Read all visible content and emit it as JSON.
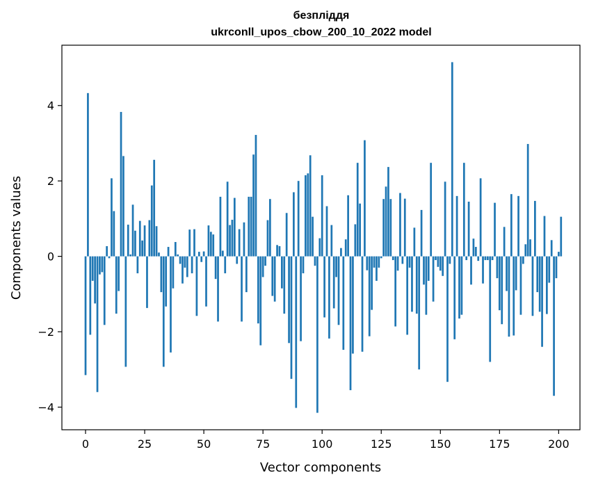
{
  "chart_data": {
    "type": "bar",
    "title_line1": "безпліддя",
    "title_line2": "ukrconll_upos_cbow_200_10_2022 model",
    "xlabel": "Vector components",
    "ylabel": "Components values",
    "xlim": [
      -10,
      209
    ],
    "ylim": [
      -4.6,
      5.6
    ],
    "x_ticks": [
      0,
      25,
      50,
      75,
      100,
      125,
      150,
      175,
      200
    ],
    "x_tick_labels": [
      "0",
      "25",
      "50",
      "75",
      "100",
      "125",
      "150",
      "175",
      "200"
    ],
    "y_ticks": [
      -4,
      -2,
      0,
      2,
      4
    ],
    "y_tick_labels": [
      "−4",
      "−2",
      "0",
      "2",
      "4"
    ],
    "bar_color": "#1f77b4",
    "grid": false,
    "values": [
      -3.15,
      4.33,
      -2.08,
      -0.65,
      -1.25,
      -3.6,
      -0.48,
      -0.42,
      -1.82,
      0.27,
      -0.05,
      2.07,
      1.2,
      -1.52,
      -0.92,
      3.83,
      2.66,
      -2.93,
      0.84,
      0.05,
      1.37,
      0.68,
      -0.45,
      0.94,
      0.42,
      0.82,
      -1.37,
      0.96,
      1.88,
      2.56,
      0.8,
      0.1,
      -0.95,
      -2.93,
      -1.33,
      0.25,
      -2.55,
      -0.85,
      0.38,
      0.05,
      -0.2,
      -0.72,
      -0.3,
      -0.55,
      0.71,
      -0.45,
      0.72,
      -1.58,
      0.12,
      -0.15,
      0.13,
      -1.33,
      0.82,
      0.65,
      0.58,
      -0.6,
      -1.73,
      1.58,
      0.15,
      -0.45,
      1.98,
      0.83,
      0.97,
      1.55,
      -0.2,
      0.72,
      -1.73,
      0.9,
      -0.95,
      1.58,
      1.58,
      2.7,
      3.22,
      -1.78,
      -2.36,
      -0.55,
      -0.25,
      0.96,
      1.52,
      -1.05,
      -1.2,
      0.3,
      0.27,
      -0.85,
      -1.52,
      1.15,
      -2.3,
      -3.25,
      1.7,
      -4.02,
      2.0,
      -2.25,
      -0.45,
      2.15,
      2.2,
      2.68,
      1.05,
      -0.25,
      -4.15,
      0.48,
      2.15,
      -1.62,
      1.33,
      -2.18,
      0.83,
      -1.38,
      -0.55,
      -1.82,
      0.22,
      -2.48,
      0.45,
      1.62,
      -3.55,
      -2.58,
      0.85,
      2.48,
      1.4,
      -2.53,
      3.08,
      -0.37,
      -2.12,
      -1.42,
      -0.3,
      -0.65,
      -0.3,
      -0.05,
      1.52,
      1.85,
      2.37,
      1.52,
      -0.1,
      -1.86,
      -0.38,
      1.68,
      -0.2,
      1.53,
      -2.08,
      -0.3,
      -1.47,
      0.76,
      -1.52,
      -3.0,
      1.23,
      -0.75,
      -1.55,
      -0.65,
      2.48,
      -1.2,
      -0.1,
      -0.28,
      -0.38,
      -0.52,
      1.98,
      -3.33,
      -0.2,
      5.15,
      -2.2,
      1.6,
      -1.65,
      -1.55,
      2.48,
      -0.1,
      1.45,
      -0.75,
      0.47,
      0.25,
      -0.12,
      2.07,
      -0.72,
      -0.1,
      -0.1,
      -2.8,
      -0.1,
      1.42,
      -0.58,
      -1.43,
      -1.8,
      0.78,
      -0.92,
      -2.13,
      1.65,
      -2.1,
      -0.9,
      1.6,
      -1.55,
      -0.2,
      0.32,
      2.98,
      0.45,
      -1.58,
      1.47,
      -0.95,
      -1.47,
      -2.4,
      1.07,
      -1.53,
      -0.7,
      0.43,
      -3.7,
      -0.58,
      0.12,
      1.05
    ]
  }
}
